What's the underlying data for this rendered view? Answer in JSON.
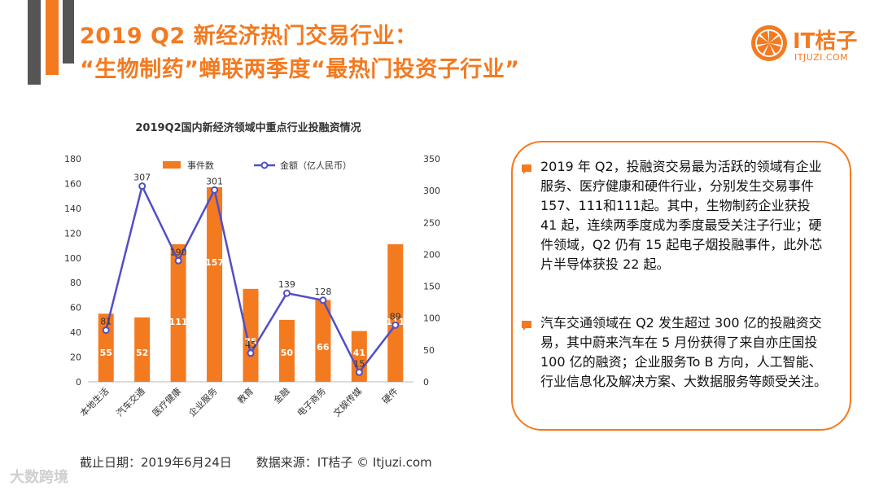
{
  "header": {
    "title_line1": "2019 Q2 新经济热门交易行业：",
    "title_line2": "“生物制药”蝉联两季度“最热门投资子行业”"
  },
  "logo": {
    "text": "IT桔子",
    "sub": "ITJUZI.COM"
  },
  "colors": {
    "accent": "#f47a20",
    "line": "#4f4fc8",
    "dark": "#555555"
  },
  "chart_data": {
    "type": "bar",
    "title": "2019Q2国内新经济领域中重点行业投融资情况",
    "categories": [
      "本地生活",
      "汽车交通",
      "医疗健康",
      "企业服务",
      "教育",
      "金融",
      "电子商务",
      "文娱传媒",
      "硬件"
    ],
    "series": [
      {
        "name": "事件数",
        "type": "bar",
        "axis": "left",
        "values": [
          55,
          52,
          111,
          157,
          75,
          50,
          66,
          41,
          111
        ]
      },
      {
        "name": "金额（亿人民币）",
        "type": "line",
        "axis": "right",
        "values": [
          81,
          307,
          190,
          301,
          45,
          139,
          128,
          15,
          89
        ]
      }
    ],
    "bar_labels": [
      "55",
      "52",
      "111",
      "157",
      "75",
      "50",
      "66",
      "41",
      "111"
    ],
    "line_labels": [
      "81",
      "307",
      "190",
      "301",
      "45",
      "139",
      "128",
      "15",
      "89"
    ],
    "y_left": {
      "min": 0,
      "max": 180,
      "ticks": [
        "0",
        "20",
        "40",
        "60",
        "80",
        "100",
        "120",
        "140",
        "160",
        "180"
      ]
    },
    "y_right": {
      "min": 0,
      "max": 350,
      "ticks": [
        "0",
        "50",
        "100",
        "150",
        "200",
        "250",
        "300",
        "350"
      ]
    },
    "legend": {
      "position": "top",
      "bar_label": "事件数",
      "line_label": "金额（亿人民币）"
    },
    "grid": false
  },
  "notes": [
    {
      "text": "2019 年 Q2，投融资交易最为活跃的领域有企业服务、医疗健康和硬件行业，分别发生交易事件157、111和111起。其中，生物制药企业获投 41 起，连续两季度成为季度最受关注子行业；硬件领域，Q2 仍有 15 起电子烟投融事件，此外芯片半导体获投 22 起。"
    },
    {
      "text": "汽车交通领域在 Q2 发生超过 300 亿的投融资交易，其中蔚来汽车在 5 月份获得了来自亦庄国投 100 亿的融资；企业服务To B 方向，人工智能、行业信息化及解决方案、大数据服务等颇受关注。"
    }
  ],
  "footer": {
    "text": "截止日期：2019年6月24日　　数据来源：IT桔子 © Itjuzi.com"
  },
  "watermark": {
    "text": "大数跨境"
  }
}
